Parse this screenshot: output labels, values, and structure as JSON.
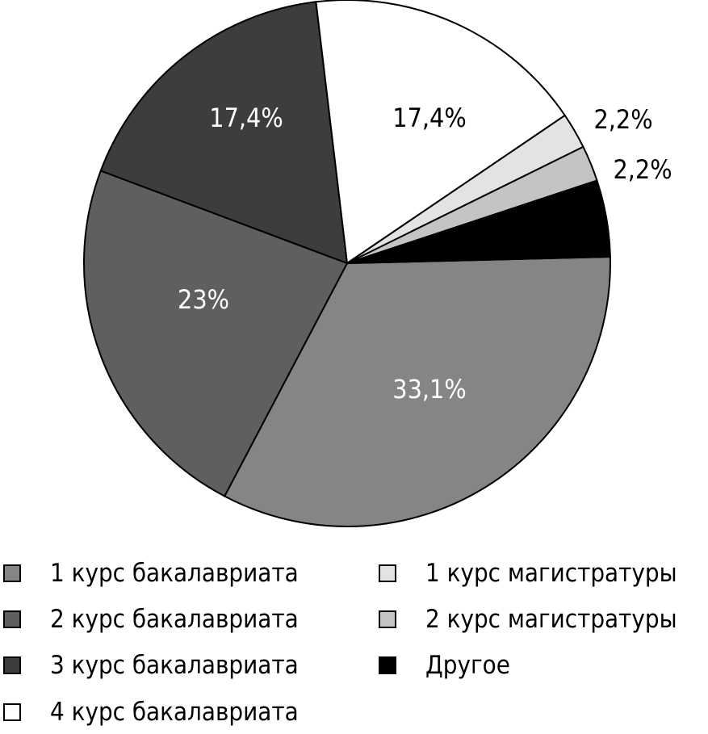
{
  "chart_data": {
    "type": "pie",
    "slices": [
      {
        "name": "1 курс бакалавриата",
        "value": 33.1,
        "label": "33,1%",
        "color": "#858585",
        "label_color": "#ffffff"
      },
      {
        "name": "2 курс бакалавриата",
        "value": 23,
        "label": "23%",
        "color": "#5f5f5f",
        "label_color": "#ffffff"
      },
      {
        "name": "3 курс бакалавриата",
        "value": 17.4,
        "label": "17,4%",
        "color": "#3d3d3d",
        "label_color": "#ffffff"
      },
      {
        "name": "4 курс бакалавриата",
        "value": 17.4,
        "label": "17,4%",
        "color": "#ffffff",
        "label_color": "#000000"
      },
      {
        "name": "1 курс магистратуры",
        "value": 2.2,
        "label": "2,2%",
        "color": "#e3e3e3",
        "label_color": "#000000"
      },
      {
        "name": "2 курс магистратуры",
        "value": 2.2,
        "label": "2,2%",
        "color": "#c4c4c4",
        "label_color": "#000000"
      },
      {
        "name": "Другое",
        "value": 4.7,
        "label": "",
        "color": "#000000",
        "label_color": "#ffffff"
      }
    ],
    "legend_placement": "bottom"
  }
}
